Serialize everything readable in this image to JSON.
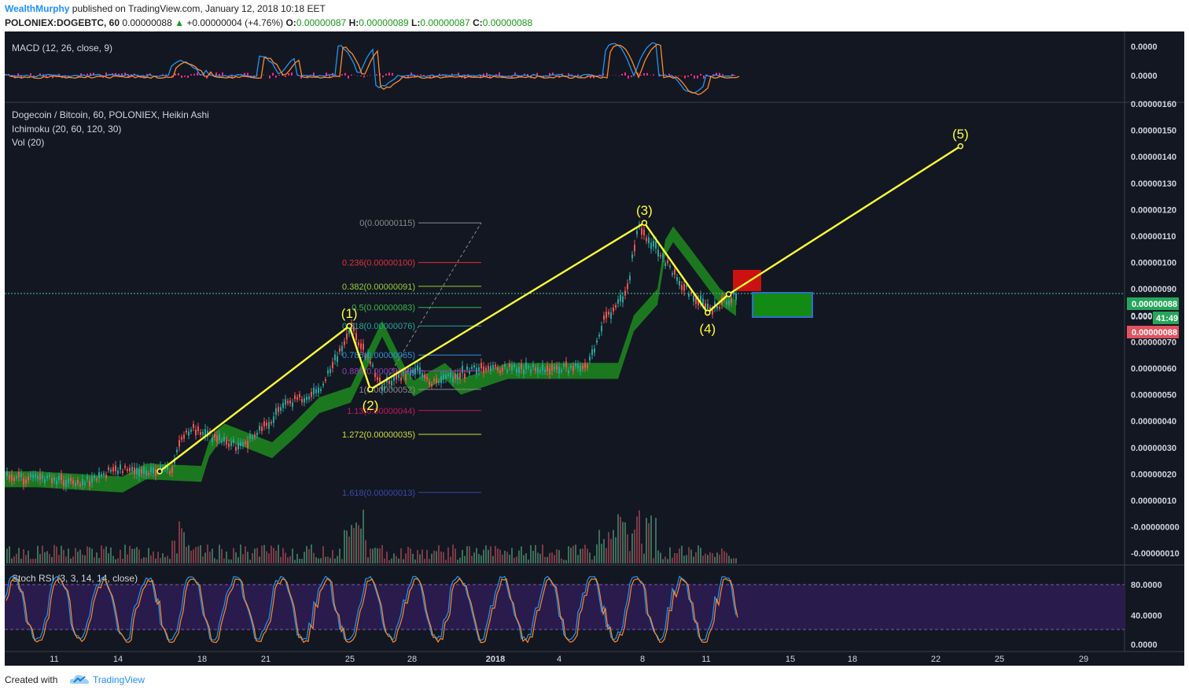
{
  "header": {
    "author": "WealthMurphy",
    "published": "published on TradingView.com, January 12, 2018 10:18 EET",
    "symbol": "POLONIEX:DOGEBTC, 60",
    "last_price": "0.00000088",
    "change": "+0.00000004 (+4.76%)",
    "ohlc": {
      "o_label": "O:",
      "o": "0.00000087",
      "h_label": "H:",
      "h": "0.00000089",
      "l_label": "L:",
      "l": "0.00000087",
      "c_label": "C:",
      "c": "0.00000088"
    }
  },
  "footer": {
    "created_with": "Created with",
    "brand": "TradingView"
  },
  "colors": {
    "background": "#131722",
    "wave_line": "#ffff33",
    "candle_up": "#26a69a",
    "candle_down": "#ef5350",
    "cloud_green": "#1f8a1f",
    "cloud_red": "#d01c1c",
    "macd_line": "#2196f3",
    "signal_line": "#ff8a26",
    "histogram": "#ff2a8a",
    "stoch_k": "#2196f3",
    "stoch_d": "#ff8a26",
    "stoch_band": "#2a1b4d"
  },
  "chart_data": [
    {
      "type": "line",
      "name": "macd-pane",
      "label": "MACD (12, 26, close, 9)",
      "y_ticks": [
        "0.0000",
        "0.0000"
      ]
    },
    {
      "type": "candlestick",
      "name": "main-price-pane",
      "title": "Dogecoin / Bitcoin, 60, POLONIEX, Heikin Ashi",
      "indicators": [
        "Ichimoku (20, 60, 120, 30)",
        "Vol (20)"
      ],
      "y_ticks": [
        "0.00000160",
        "0.00000150",
        "0.00000140",
        "0.00000130",
        "0.00000120",
        "0.00000110",
        "0.00000100",
        "0.00000090",
        "0.00000080",
        "0.00000070",
        "0.00000060",
        "0.00000050",
        "0.00000040",
        "0.00000030",
        "0.00000020",
        "0.00000010",
        "-0.00000000",
        "-0.00000010"
      ],
      "ylim": [
        -1.2e-07,
        1.6e-06
      ],
      "price_label": "0.00000088",
      "timer_label": "41:49",
      "timer_value_label": "0.000",
      "red_label": "0.00000088",
      "x_ticks": [
        "11",
        "14",
        "18",
        "21",
        "25",
        "28",
        "2018",
        "4",
        "8",
        "11",
        "15",
        "18",
        "22",
        "25",
        "29"
      ],
      "elliott_waves": [
        {
          "label": "",
          "date": "Dec 16",
          "value": 2.1e-07
        },
        {
          "label": "(1)",
          "date": "Dec 25",
          "value": 7.6e-07
        },
        {
          "label": "(2)",
          "date": "Dec 26",
          "value": 5.2e-07
        },
        {
          "label": "(3)",
          "date": "Jan 8",
          "value": 1.15e-06
        },
        {
          "label": "(4)",
          "date": "Jan 11",
          "value": 8.1e-07
        },
        {
          "label": "",
          "date": "Jan 12",
          "value": 8.8e-07
        },
        {
          "label": "(5)",
          "date": "Jan 23",
          "value": 1.44e-06
        }
      ],
      "fibonacci": [
        {
          "label": "0(0.00000115)",
          "value": 1.15e-06
        },
        {
          "label": "0.236(0.00000100)",
          "value": 1e-06
        },
        {
          "label": "0.382(0.00000091)",
          "value": 9.1e-07
        },
        {
          "label": "0.5(0.00000083)",
          "value": 8.3e-07
        },
        {
          "label": "0.618(0.00000076)",
          "value": 7.6e-07
        },
        {
          "label": "0.786(0.00000065)",
          "value": 6.5e-07
        },
        {
          "label": "0.886(0.00000059)",
          "value": 5.9e-07
        },
        {
          "label": "1(0.00000052)",
          "value": 5.2e-07
        },
        {
          "label": "1.13(0.00000044)",
          "value": 4.4e-07
        },
        {
          "label": "1.272(0.00000035)",
          "value": 3.5e-07
        },
        {
          "label": "1.618(0.00000013)",
          "value": 1.3e-07
        }
      ]
    },
    {
      "type": "line",
      "name": "stoch-rsi-pane",
      "label": "Stoch RSI (3, 3, 14, 14, close)",
      "y_ticks": [
        "80.0000",
        "40.0000",
        "0.0000"
      ],
      "ylim": [
        0,
        100
      ]
    }
  ]
}
